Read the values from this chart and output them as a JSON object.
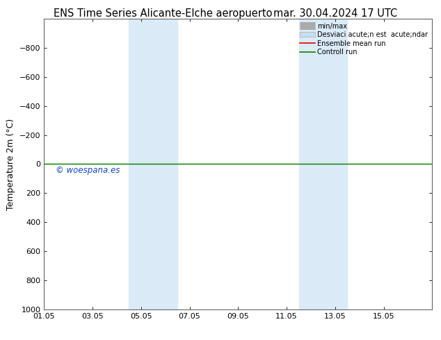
{
  "title_left": "ENS Time Series Alicante-Elche aeropuerto",
  "title_right": "mar. 30.04.2024 17 UTC",
  "ylabel": "Temperature 2m (°C)",
  "watermark": "© woespana.es",
  "xlim_left": 0.0,
  "xlim_right": 16.0,
  "ylim_bottom": 1000,
  "ylim_top": -1000,
  "yticks": [
    -800,
    -600,
    -400,
    -200,
    0,
    200,
    400,
    600,
    800,
    1000
  ],
  "xtick_positions": [
    0,
    2,
    4,
    6,
    8,
    10,
    12,
    14,
    16
  ],
  "xtick_labels": [
    "01.05",
    "03.05",
    "05.05",
    "07.05",
    "09.05",
    "11.05",
    "13.05",
    "15.05",
    ""
  ],
  "shaded_bands": [
    {
      "xmin": 3.5,
      "xmax": 5.5
    },
    {
      "xmin": 10.5,
      "xmax": 12.5
    }
  ],
  "band_color": "#daeaf7",
  "green_line_y": 0,
  "red_line_y": 0,
  "legend_labels": [
    "min/max",
    "Desviaci acute;n est  acute;ndar",
    "Ensemble mean run",
    "Controll run"
  ],
  "title_fontsize": 10.5,
  "axis_bg": "#ffffff",
  "line_color_green": "#008800",
  "line_color_red": "#dd0000",
  "minmax_color": "#aaaaaa",
  "std_color": "#c5dff0",
  "watermark_color": "#1144cc",
  "spine_color": "#666666"
}
